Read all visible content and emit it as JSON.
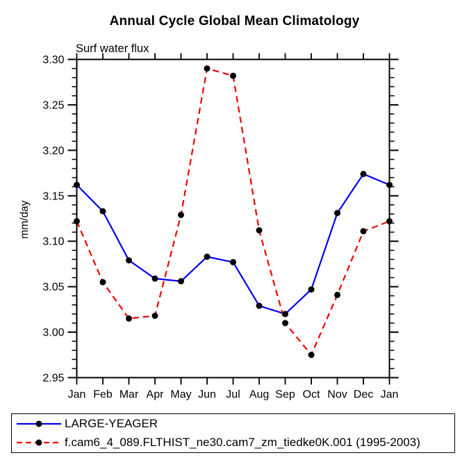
{
  "title": "Annual Cycle Global Mean Climatology",
  "subtitle": "Surf water flux",
  "chart_data": {
    "type": "line",
    "categories": [
      "Jan",
      "Feb",
      "Mar",
      "Apr",
      "May",
      "Jun",
      "Jul",
      "Aug",
      "Sep",
      "Oct",
      "Nov",
      "Dec",
      "Jan"
    ],
    "series": [
      {
        "name": "LARGE-YEAGER",
        "color": "#0000ee",
        "line_style": "solid",
        "marker": "circle",
        "marker_color": "#000000",
        "values": [
          3.162,
          3.133,
          3.079,
          3.059,
          3.056,
          3.083,
          3.077,
          3.029,
          3.02,
          3.047,
          3.131,
          3.174,
          3.162
        ]
      },
      {
        "name": "f.cam6_4_089.FLTHIST_ne30.cam7_zm_tiedke0K.001 (1995-2003)",
        "color": "#ee0000",
        "line_style": "dashed",
        "marker": "circle",
        "marker_color": "#000000",
        "values": [
          3.122,
          3.055,
          3.015,
          3.018,
          3.129,
          3.29,
          3.282,
          3.112,
          3.01,
          2.975,
          3.041,
          3.111,
          3.122
        ]
      }
    ],
    "xlabel": "",
    "ylabel": "mm/day",
    "ylim": [
      2.95,
      3.3
    ],
    "y_major_step": 0.05,
    "y_minor_step": 0.01,
    "y_tick_labels": [
      "2.95",
      "3.00",
      "3.05",
      "3.10",
      "3.15",
      "3.20",
      "3.25",
      "3.30"
    ],
    "grid": false,
    "legend_position": "bottom"
  }
}
